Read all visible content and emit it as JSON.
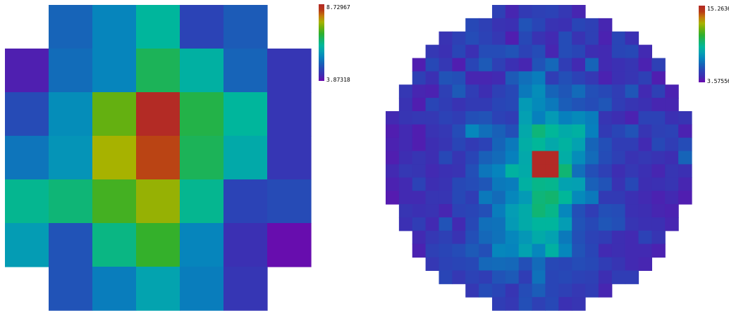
{
  "palette": [
    "#6a0aae",
    "#3e2db2",
    "#2a44b6",
    "#1763b8",
    "#0683bd",
    "#049fb3",
    "#00b79b",
    "#14b46a",
    "#2eb02e",
    "#6ab00e",
    "#a8b200",
    "#c37a0a",
    "#b83a16",
    "#b32a26"
  ],
  "chart_data": [
    {
      "type": "heatmap",
      "shape": "circular-mask",
      "rows": 7,
      "cols": 7,
      "colorbar": {
        "max_label": "8.72967",
        "min_label": "3.87318",
        "max": 8.72967,
        "min": 3.87318
      },
      "values": [
        [
          null,
          5.0,
          5.4,
          6.1,
          4.6,
          4.9,
          null
        ],
        [
          4.1,
          5.1,
          5.4,
          6.6,
          6.0,
          5.0,
          4.4
        ],
        [
          4.7,
          5.5,
          7.2,
          8.7,
          6.7,
          6.1,
          4.4
        ],
        [
          5.2,
          5.6,
          7.6,
          8.3,
          6.6,
          5.9,
          4.4
        ],
        [
          6.2,
          6.4,
          7.0,
          7.5,
          6.2,
          4.6,
          4.7
        ],
        [
          5.7,
          4.8,
          6.3,
          6.9,
          5.4,
          4.3,
          3.9
        ],
        [
          null,
          4.8,
          5.3,
          5.8,
          5.3,
          4.4,
          null
        ]
      ]
    },
    {
      "type": "heatmap",
      "shape": "circular-mask",
      "rows": 23,
      "cols": 23,
      "colorbar": {
        "max_label": "15.2636",
        "min_label": "3.57556",
        "max": 15.2636,
        "min": 3.57556
      },
      "peak": {
        "row": 11,
        "col": 11,
        "value": 15.2636
      },
      "values": [
        [
          null,
          null,
          null,
          null,
          null,
          null,
          null,
          null,
          5.2,
          4.3,
          5.0,
          5.2,
          5.3,
          4.9,
          4.3,
          null,
          null,
          null,
          null,
          null,
          null,
          null,
          null
        ],
        [
          null,
          null,
          null,
          null,
          null,
          null,
          5.5,
          5.2,
          4.7,
          4.6,
          5.8,
          5.4,
          4.7,
          4.6,
          5.4,
          5.2,
          4.3,
          null,
          null,
          null,
          null,
          null,
          null
        ],
        [
          null,
          null,
          null,
          null,
          4.7,
          5.2,
          5.6,
          5.3,
          4.9,
          4.1,
          5.5,
          4.7,
          4.4,
          5.6,
          4.7,
          5.2,
          4.2,
          5.4,
          4.6,
          null,
          null,
          null,
          null
        ],
        [
          null,
          null,
          null,
          4.9,
          4.6,
          5.4,
          4.6,
          5.6,
          5.6,
          5.8,
          5.3,
          5.6,
          4.3,
          5.6,
          5.4,
          4.5,
          4.4,
          5.4,
          5.5,
          4.4,
          null,
          null,
          null
        ],
        [
          null,
          null,
          4.1,
          5.5,
          4.9,
          4.1,
          5.4,
          6.0,
          5.2,
          4.6,
          4.3,
          5.8,
          6.4,
          5.1,
          4.4,
          6.3,
          4.4,
          4.6,
          4.8,
          4.2,
          5.2,
          null,
          null
        ],
        [
          null,
          null,
          5.2,
          4.6,
          5.8,
          5.7,
          4.3,
          4.3,
          4.4,
          6.0,
          6.6,
          7.0,
          5.1,
          5.7,
          5.3,
          4.9,
          4.2,
          4.6,
          4.8,
          5.2,
          4.1,
          null,
          null
        ],
        [
          null,
          4.9,
          4.3,
          4.2,
          5.2,
          6.0,
          5.1,
          4.5,
          5.2,
          5.5,
          6.9,
          7.5,
          6.3,
          5.9,
          6.5,
          5.7,
          5.5,
          5.1,
          5.9,
          4.4,
          5.2,
          4.2,
          null
        ],
        [
          null,
          4.7,
          4.1,
          5.4,
          5.1,
          4.7,
          5.0,
          5.0,
          5.4,
          5.5,
          7.9,
          7.4,
          6.9,
          6.1,
          5.8,
          5.6,
          5.9,
          5.1,
          4.8,
          4.6,
          4.3,
          4.3,
          null
        ],
        [
          4.4,
          4.8,
          4.9,
          4.9,
          5.3,
          5.1,
          5.7,
          5.8,
          5.3,
          5.1,
          8.1,
          7.1,
          7.9,
          7.1,
          7.4,
          7.0,
          4.8,
          4.5,
          4.2,
          5.3,
          5.3,
          4.6,
          4.8
        ],
        [
          4.1,
          4.4,
          4.1,
          4.7,
          4.9,
          5.6,
          7.3,
          6.6,
          6.2,
          5.7,
          8.4,
          9.6,
          9.0,
          8.5,
          8.7,
          7.1,
          5.0,
          5.4,
          5.8,
          4.8,
          5.2,
          5.3,
          4.2
        ],
        [
          4.2,
          4.4,
          4.1,
          4.5,
          4.8,
          5.4,
          5.0,
          5.3,
          6.3,
          6.9,
          8.6,
          9.0,
          8.4,
          8.8,
          8.2,
          6.3,
          5.7,
          5.1,
          5.1,
          4.4,
          5.5,
          5.1,
          5.6
        ],
        [
          4.1,
          4.5,
          4.8,
          4.5,
          5.5,
          4.8,
          5.4,
          6.2,
          6.5,
          7.1,
          8.4,
          15.26,
          15.26,
          8.6,
          7.5,
          6.5,
          5.6,
          5.2,
          4.7,
          4.9,
          4.7,
          4.5,
          6.3
        ],
        [
          4.4,
          4.9,
          4.8,
          4.4,
          4.6,
          4.7,
          5.7,
          6.8,
          7.2,
          8.8,
          8.5,
          15.26,
          15.26,
          9.7,
          6.6,
          5.7,
          5.2,
          4.5,
          4.9,
          4.6,
          4.3,
          4.8,
          4.6
        ],
        [
          4.2,
          4.4,
          5.3,
          4.5,
          4.7,
          5.5,
          5.6,
          5.9,
          6.9,
          7.0,
          8.7,
          9.3,
          9.2,
          8.2,
          8.1,
          6.2,
          5.8,
          4.7,
          5.5,
          4.5,
          4.6,
          4.8,
          4.3
        ],
        [
          4.0,
          4.4,
          4.4,
          4.8,
          4.8,
          5.5,
          5.1,
          6.9,
          6.5,
          7.3,
          7.9,
          9.6,
          9.8,
          9.0,
          7.4,
          6.9,
          5.0,
          5.0,
          4.6,
          4.4,
          4.2,
          4.4,
          4.1
        ],
        [
          null,
          4.8,
          4.6,
          4.7,
          4.3,
          5.3,
          5.4,
          5.7,
          7.0,
          8.0,
          8.5,
          9.7,
          9.3,
          7.3,
          5.7,
          5.1,
          5.7,
          5.6,
          4.6,
          4.5,
          4.3,
          4.2,
          null
        ],
        [
          null,
          4.6,
          5.1,
          4.4,
          5.8,
          4.4,
          5.5,
          6.6,
          6.7,
          7.9,
          8.5,
          8.9,
          8.9,
          8.0,
          5.8,
          5.5,
          5.9,
          5.7,
          4.8,
          4.6,
          4.6,
          4.3,
          null
        ],
        [
          null,
          null,
          4.4,
          4.9,
          5.2,
          4.7,
          5.7,
          6.4,
          6.7,
          7.3,
          7.8,
          8.5,
          8.2,
          6.9,
          5.7,
          5.3,
          5.1,
          4.5,
          4.4,
          5.3,
          4.8,
          null,
          null
        ],
        [
          null,
          null,
          4.2,
          5.2,
          5.4,
          5.6,
          6.0,
          5.7,
          7.3,
          7.2,
          8.2,
          7.3,
          8.7,
          7.3,
          5.8,
          5.4,
          4.4,
          4.5,
          4.4,
          4.4,
          4.2,
          null,
          null
        ],
        [
          null,
          null,
          null,
          4.9,
          5.3,
          5.4,
          5.5,
          6.4,
          6.5,
          6.4,
          5.7,
          6.5,
          5.5,
          5.4,
          5.6,
          5.5,
          5.1,
          4.8,
          4.4,
          4.3,
          null,
          null,
          null
        ],
        [
          null,
          null,
          null,
          null,
          5.4,
          4.9,
          5.3,
          5.1,
          5.8,
          6.0,
          5.1,
          6.7,
          5.4,
          5.5,
          5.3,
          5.2,
          4.5,
          5.1,
          5.1,
          null,
          null,
          null,
          null
        ],
        [
          null,
          null,
          null,
          null,
          null,
          null,
          4.9,
          5.6,
          5.4,
          4.8,
          5.6,
          6.1,
          5.4,
          5.2,
          4.9,
          5.1,
          4.3,
          null,
          null,
          null,
          null,
          null,
          null
        ],
        [
          null,
          null,
          null,
          null,
          null,
          null,
          null,
          null,
          5.1,
          4.9,
          5.7,
          5.2,
          5.5,
          4.6,
          4.8,
          null,
          null,
          null,
          null,
          null,
          null,
          null,
          null
        ]
      ]
    }
  ]
}
